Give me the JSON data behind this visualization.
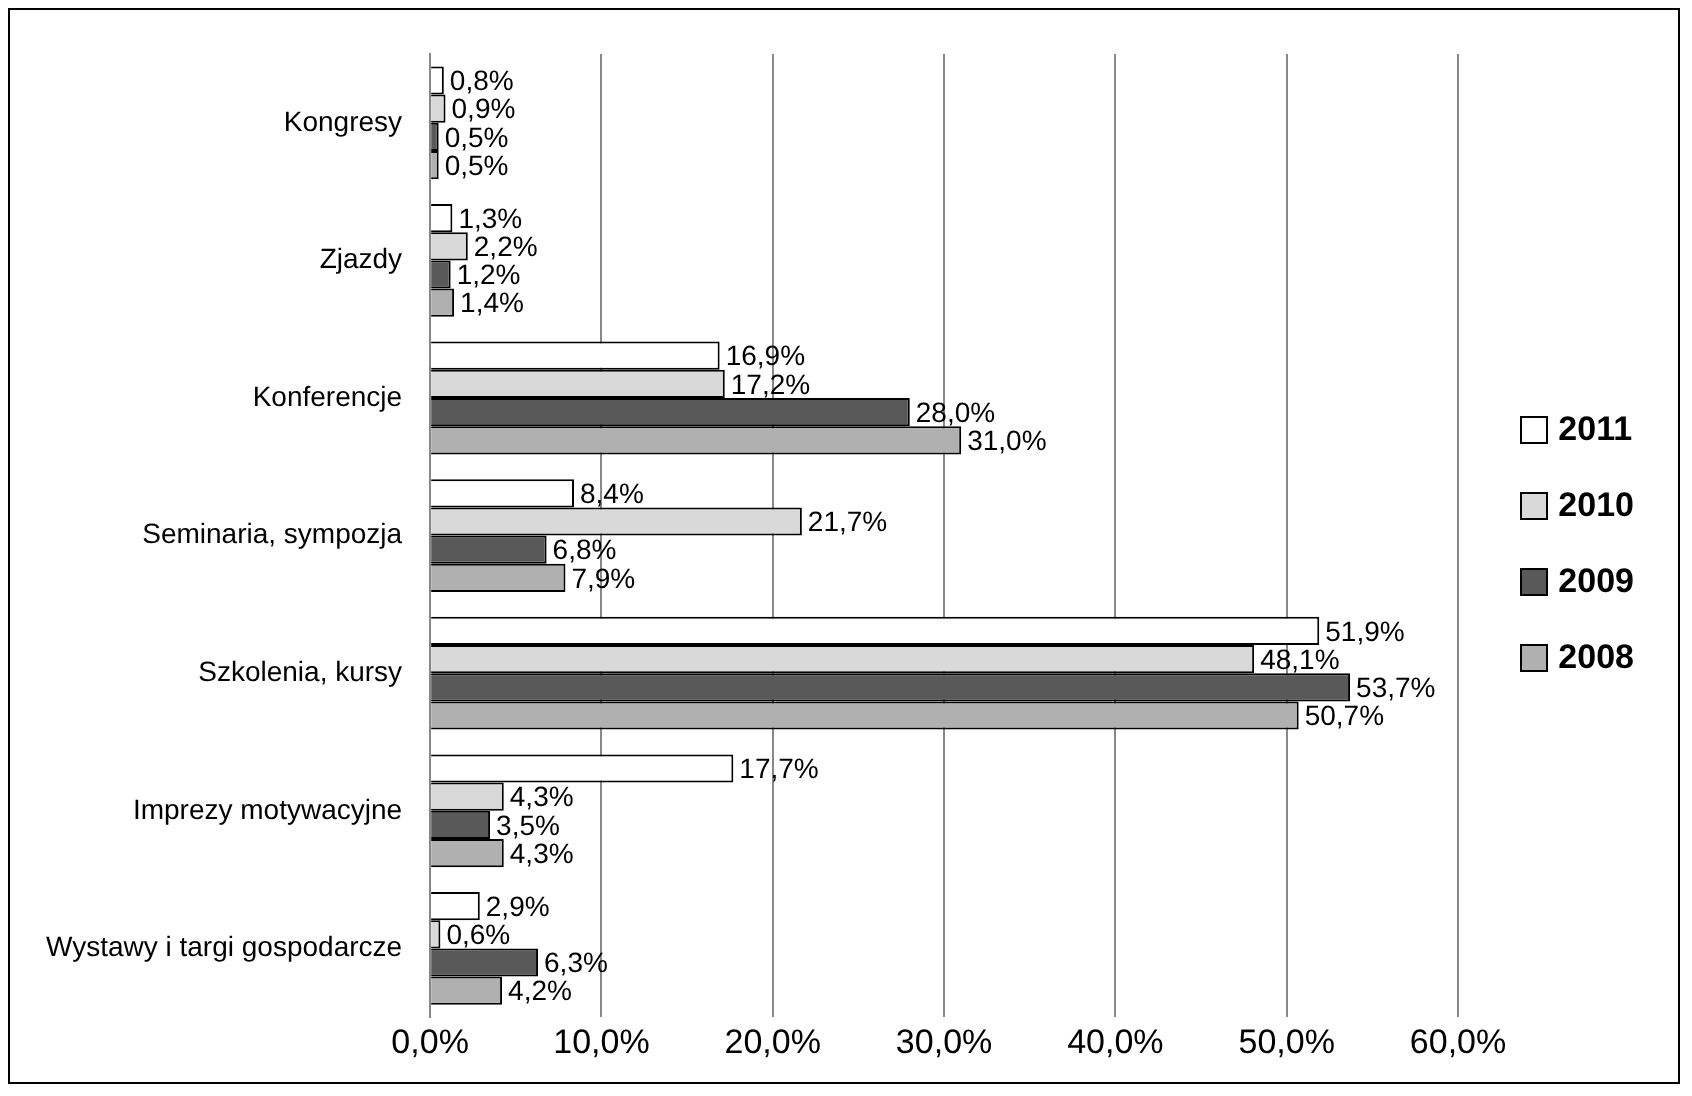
{
  "chart_data": {
    "type": "bar",
    "orientation": "horizontal",
    "categories": [
      "Kongresy",
      "Zjazdy",
      "Konferencje",
      "Seminaria, sympozja",
      "Szkolenia, kursy",
      "Imprezy motywacyjne",
      "Wystawy i targi gospodarcze"
    ],
    "series": [
      {
        "name": "2011",
        "color": "#ffffff",
        "values": [
          0.8,
          1.3,
          16.9,
          8.4,
          51.9,
          17.7,
          2.9
        ],
        "value_labels": [
          "0,8%",
          "1,3%",
          "16,9%",
          "8,4%",
          "51,9%",
          "17,7%",
          "2,9%"
        ]
      },
      {
        "name": "2010",
        "color": "#d9d9d9",
        "values": [
          0.9,
          2.2,
          17.2,
          21.7,
          48.1,
          4.3,
          0.6
        ],
        "value_labels": [
          "0,9%",
          "2,2%",
          "17,2%",
          "21,7%",
          "48,1%",
          "4,3%",
          "0,6%"
        ]
      },
      {
        "name": "2009",
        "color": "#595959",
        "values": [
          0.5,
          1.2,
          28.0,
          6.8,
          53.7,
          3.5,
          6.3
        ],
        "value_labels": [
          "0,5%",
          "1,2%",
          "28,0%",
          "6,8%",
          "53,7%",
          "3,5%",
          "6,3%"
        ]
      },
      {
        "name": "2008",
        "color": "#b0b0b0",
        "values": [
          0.5,
          1.4,
          31.0,
          7.9,
          50.7,
          4.3,
          4.2
        ],
        "value_labels": [
          "0,5%",
          "1,4%",
          "31,0%",
          "7,9%",
          "50,7%",
          "4,3%",
          "4,2%"
        ]
      }
    ],
    "xlim": [
      0,
      60
    ],
    "xticks": [
      {
        "value": 0,
        "label": "0,0%"
      },
      {
        "value": 10,
        "label": "10,0%"
      },
      {
        "value": 20,
        "label": "20,0%"
      },
      {
        "value": 30,
        "label": "30,0%"
      },
      {
        "value": 40,
        "label": "40,0%"
      },
      {
        "value": 50,
        "label": "50,0%"
      },
      {
        "value": 60,
        "label": "60,0%"
      }
    ],
    "grid": "x",
    "legend": "right"
  }
}
